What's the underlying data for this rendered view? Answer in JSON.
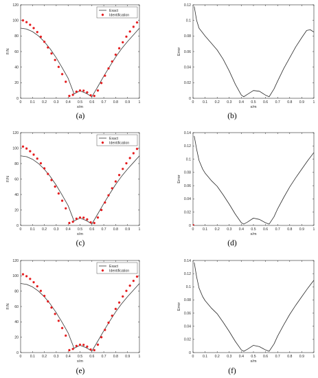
{
  "colors": {
    "exact": "#333333",
    "identification": "#e41a1c",
    "axis": "#262626",
    "error": "#262626"
  },
  "panels": [
    {
      "label": "(a)"
    },
    {
      "label": "(b)"
    },
    {
      "label": "(c)"
    },
    {
      "label": "(d)"
    },
    {
      "label": "(e)"
    },
    {
      "label": "(f)"
    }
  ],
  "chart_data": [
    {
      "id": "a",
      "type": "line",
      "xlabel": "x/m",
      "ylabel": "F/N",
      "xlim": [
        0,
        1
      ],
      "ylim": [
        0,
        120
      ],
      "xticks": [
        0,
        0.1,
        0.2,
        0.3,
        0.4,
        0.5,
        0.6,
        0.7,
        0.8,
        0.9,
        1
      ],
      "xtick_labels": [
        "0",
        "0.1",
        "0.2",
        "0.3",
        "0.4",
        "0.5",
        "0.6",
        "0.7",
        "0.8",
        "0.9",
        "1"
      ],
      "yticks": [
        0,
        20,
        40,
        60,
        80,
        100,
        120
      ],
      "ytick_labels": [
        "0",
        "20",
        "40",
        "60",
        "80",
        "100",
        "120"
      ],
      "legend": {
        "position": "top-right",
        "entries": [
          "Exact",
          "Identification"
        ]
      },
      "series": [
        {
          "name": "Exact",
          "style": "line",
          "x": [
            0,
            0.05,
            0.1,
            0.15,
            0.2,
            0.25,
            0.3,
            0.35,
            0.4,
            0.45,
            0.5,
            0.55,
            0.6,
            0.65,
            0.7,
            0.75,
            0.8,
            0.85,
            0.9,
            0.95,
            1
          ],
          "y": [
            90,
            88.9,
            85.6,
            80.1,
            72.6,
            63.2,
            52,
            39.2,
            25.6,
            5.6,
            9.5,
            6.5,
            2,
            15,
            28.4,
            40.9,
            53,
            63.6,
            72.9,
            81.4,
            90
          ]
        },
        {
          "name": "Identification",
          "style": "markers",
          "x": [
            0.02,
            0.05,
            0.08,
            0.11,
            0.14,
            0.17,
            0.2,
            0.23,
            0.26,
            0.29,
            0.32,
            0.35,
            0.38,
            0.41,
            0.44,
            0.47,
            0.5,
            0.53,
            0.56,
            0.59,
            0.62,
            0.65,
            0.68,
            0.71,
            0.74,
            0.77,
            0.8,
            0.83,
            0.86,
            0.89,
            0.92,
            0.95,
            0.98
          ],
          "y": [
            100,
            97.8,
            94.4,
            90.1,
            85,
            79,
            72.5,
            65.3,
            57.5,
            49.2,
            40.3,
            31,
            21.2,
            3,
            4.5,
            8.5,
            10,
            9.8,
            7.6,
            3.8,
            3,
            10,
            19.6,
            29,
            38.3,
            47.3,
            56,
            64.2,
            71.9,
            79.1,
            85.7,
            91.8,
            97.3
          ]
        }
      ]
    },
    {
      "id": "b",
      "type": "line",
      "xlabel": "x/m",
      "ylabel": "Error",
      "xlim": [
        0,
        1
      ],
      "ylim": [
        0,
        0.12
      ],
      "xticks": [
        0,
        0.1,
        0.2,
        0.3,
        0.4,
        0.5,
        0.6,
        0.7,
        0.8,
        0.9,
        1
      ],
      "xtick_labels": [
        "0",
        "0.1",
        "0.2",
        "0.3",
        "0.4",
        "0.5",
        "0.6",
        "0.7",
        "0.8",
        "0.9",
        "1"
      ],
      "yticks": [
        0,
        0.02,
        0.04,
        0.06,
        0.08,
        0.1,
        0.12
      ],
      "ytick_labels": [
        "0",
        "0.02",
        "0.04",
        "0.06",
        "0.08",
        "0.1",
        "0.12"
      ],
      "series": [
        {
          "style": "line",
          "x": [
            0.01,
            0.03,
            0.05,
            0.08,
            0.1,
            0.15,
            0.2,
            0.25,
            0.3,
            0.35,
            0.4,
            0.42,
            0.45,
            0.5,
            0.55,
            0.6,
            0.63,
            0.67,
            0.7,
            0.75,
            0.8,
            0.85,
            0.9,
            0.94,
            0.97,
            1
          ],
          "y": [
            0.118,
            0.1,
            0.09,
            0.084,
            0.08,
            0.071,
            0.062,
            0.05,
            0.035,
            0.018,
            0.004,
            0.002,
            0.005,
            0.01,
            0.009,
            0.004,
            0.002,
            0.012,
            0.022,
            0.038,
            0.052,
            0.066,
            0.078,
            0.087,
            0.088,
            0.085
          ]
        }
      ]
    },
    {
      "id": "c",
      "type": "line",
      "xlabel": "x/m",
      "ylabel": "F/N",
      "xlim": [
        0,
        1
      ],
      "ylim": [
        0,
        120
      ],
      "xticks": [
        0,
        0.1,
        0.2,
        0.3,
        0.4,
        0.5,
        0.6,
        0.7,
        0.8,
        0.9,
        1
      ],
      "xtick_labels": [
        "0",
        "0.1",
        "0.2",
        "0.3",
        "0.4",
        "0.5",
        "0.6",
        "0.7",
        "0.8",
        "0.9",
        "1"
      ],
      "yticks": [
        0,
        20,
        40,
        60,
        80,
        100,
        120
      ],
      "ytick_labels": [
        "0",
        "20",
        "40",
        "60",
        "80",
        "100",
        "120"
      ],
      "legend": {
        "position": "top-right",
        "entries": [
          "Exact",
          "Identification"
        ]
      },
      "series": [
        {
          "name": "Exact",
          "style": "line",
          "x": [
            0,
            0.05,
            0.1,
            0.15,
            0.2,
            0.25,
            0.3,
            0.35,
            0.4,
            0.45,
            0.5,
            0.55,
            0.6,
            0.65,
            0.7,
            0.75,
            0.8,
            0.85,
            0.9,
            0.95,
            1
          ],
          "y": [
            90,
            88.9,
            85.6,
            80.1,
            72.6,
            63.2,
            52,
            39.2,
            25.6,
            5.6,
            9.5,
            6.5,
            2,
            15,
            28.4,
            40.9,
            53,
            63.6,
            72.9,
            81.4,
            90
          ]
        },
        {
          "name": "Identification",
          "style": "markers",
          "x": [
            0.02,
            0.05,
            0.08,
            0.11,
            0.14,
            0.17,
            0.2,
            0.23,
            0.26,
            0.29,
            0.32,
            0.35,
            0.38,
            0.41,
            0.44,
            0.47,
            0.5,
            0.53,
            0.56,
            0.59,
            0.62,
            0.65,
            0.68,
            0.71,
            0.74,
            0.77,
            0.8,
            0.83,
            0.86,
            0.89,
            0.92,
            0.95,
            0.98
          ],
          "y": [
            102,
            99.5,
            96,
            91.6,
            86.4,
            80.4,
            73.8,
            66.6,
            58.7,
            50.3,
            41.4,
            32,
            22.1,
            3.2,
            4.7,
            8.7,
            10.2,
            10,
            7.8,
            4,
            3.2,
            10.3,
            20,
            29.6,
            39,
            48.1,
            56.9,
            65.2,
            73.1,
            80.4,
            87.2,
            93.4,
            99
          ]
        }
      ]
    },
    {
      "id": "d",
      "type": "line",
      "xlabel": "x/m",
      "ylabel": "Error",
      "xlim": [
        0,
        1
      ],
      "ylim": [
        0,
        0.14
      ],
      "xticks": [
        0,
        0.1,
        0.2,
        0.3,
        0.4,
        0.5,
        0.6,
        0.7,
        0.8,
        0.9,
        1
      ],
      "xtick_labels": [
        "0",
        "0.1",
        "0.2",
        "0.3",
        "0.4",
        "0.5",
        "0.6",
        "0.7",
        "0.8",
        "0.9",
        "1"
      ],
      "yticks": [
        0,
        0.02,
        0.04,
        0.06,
        0.08,
        0.1,
        0.12,
        0.14
      ],
      "ytick_labels": [
        "0",
        "0.02",
        "0.04",
        "0.06",
        "0.08",
        "0.1",
        "0.12",
        "0.14"
      ],
      "series": [
        {
          "style": "line",
          "x": [
            0.01,
            0.03,
            0.05,
            0.08,
            0.1,
            0.15,
            0.2,
            0.25,
            0.3,
            0.35,
            0.4,
            0.42,
            0.45,
            0.5,
            0.55,
            0.6,
            0.63,
            0.67,
            0.7,
            0.75,
            0.8,
            0.85,
            0.9,
            0.95,
            1
          ],
          "y": [
            0.135,
            0.115,
            0.098,
            0.085,
            0.079,
            0.068,
            0.059,
            0.046,
            0.032,
            0.017,
            0.004,
            0.002,
            0.005,
            0.011,
            0.009,
            0.004,
            0.002,
            0.013,
            0.025,
            0.042,
            0.058,
            0.072,
            0.085,
            0.098,
            0.11
          ]
        },
        {
          "style": "marker",
          "x": [
            0
          ],
          "y": [
            0
          ]
        }
      ]
    },
    {
      "id": "e",
      "type": "line",
      "xlabel": "x/m",
      "ylabel": "F/N",
      "xlim": [
        0,
        1
      ],
      "ylim": [
        0,
        120
      ],
      "xticks": [
        0,
        0.1,
        0.2,
        0.3,
        0.4,
        0.5,
        0.6,
        0.7,
        0.8,
        0.9,
        1
      ],
      "xtick_labels": [
        "0",
        "0.1",
        "0.2",
        "0.3",
        "0.4",
        "0.5",
        "0.6",
        "0.7",
        "0.8",
        "0.9",
        "1"
      ],
      "yticks": [
        0,
        20,
        40,
        60,
        80,
        100,
        120
      ],
      "ytick_labels": [
        "0",
        "20",
        "40",
        "60",
        "80",
        "100",
        "120"
      ],
      "legend": {
        "position": "top-right",
        "entries": [
          "Exact",
          "Identification"
        ]
      },
      "series": [
        {
          "name": "Exact",
          "style": "line",
          "x": [
            0,
            0.05,
            0.1,
            0.15,
            0.2,
            0.25,
            0.3,
            0.35,
            0.4,
            0.45,
            0.5,
            0.55,
            0.6,
            0.65,
            0.7,
            0.75,
            0.8,
            0.85,
            0.9,
            0.95,
            1
          ],
          "y": [
            90,
            88.9,
            85.6,
            80.1,
            72.6,
            63.2,
            52,
            39.2,
            25.6,
            5.6,
            9.5,
            6.5,
            2,
            15,
            28.4,
            40.9,
            53,
            63.6,
            72.9,
            81.4,
            90
          ]
        },
        {
          "name": "Identification",
          "style": "markers",
          "x": [
            0.02,
            0.05,
            0.08,
            0.11,
            0.14,
            0.17,
            0.2,
            0.23,
            0.26,
            0.29,
            0.32,
            0.35,
            0.38,
            0.41,
            0.44,
            0.47,
            0.5,
            0.53,
            0.56,
            0.59,
            0.62,
            0.65,
            0.68,
            0.71,
            0.74,
            0.77,
            0.8,
            0.83,
            0.86,
            0.89,
            0.92,
            0.95,
            0.98
          ],
          "y": [
            102,
            99.5,
            96,
            91.6,
            86.4,
            80.4,
            73.8,
            66.6,
            58.7,
            50.3,
            41.4,
            32,
            22.1,
            3.2,
            4.7,
            8.7,
            10.2,
            10,
            7.8,
            4,
            3.2,
            10.3,
            20,
            29.6,
            39,
            48.1,
            56.9,
            65.2,
            73.1,
            80.4,
            87.2,
            93.4,
            99
          ]
        }
      ]
    },
    {
      "id": "f",
      "type": "line",
      "xlabel": "x/m",
      "ylabel": "Error",
      "xlim": [
        0,
        1
      ],
      "ylim": [
        0,
        0.14
      ],
      "xticks": [
        0,
        0.1,
        0.2,
        0.3,
        0.4,
        0.5,
        0.6,
        0.7,
        0.8,
        0.9,
        1
      ],
      "xtick_labels": [
        "0",
        "0.1",
        "0.2",
        "0.3",
        "0.4",
        "0.5",
        "0.6",
        "0.7",
        "0.8",
        "0.9",
        "1"
      ],
      "yticks": [
        0,
        0.02,
        0.04,
        0.06,
        0.08,
        0.1,
        0.12,
        0.14
      ],
      "ytick_labels": [
        "0",
        "0.02",
        "0.04",
        "0.06",
        "0.08",
        "0.1",
        "0.12",
        "0.14"
      ],
      "series": [
        {
          "style": "line",
          "x": [
            0.01,
            0.03,
            0.05,
            0.08,
            0.1,
            0.15,
            0.2,
            0.25,
            0.3,
            0.35,
            0.4,
            0.42,
            0.45,
            0.5,
            0.55,
            0.6,
            0.63,
            0.67,
            0.7,
            0.75,
            0.8,
            0.85,
            0.9,
            0.95,
            1
          ],
          "y": [
            0.137,
            0.115,
            0.098,
            0.085,
            0.079,
            0.068,
            0.059,
            0.046,
            0.032,
            0.017,
            0.004,
            0.002,
            0.005,
            0.011,
            0.009,
            0.004,
            0.002,
            0.013,
            0.025,
            0.042,
            0.058,
            0.072,
            0.085,
            0.098,
            0.11
          ]
        }
      ]
    }
  ]
}
